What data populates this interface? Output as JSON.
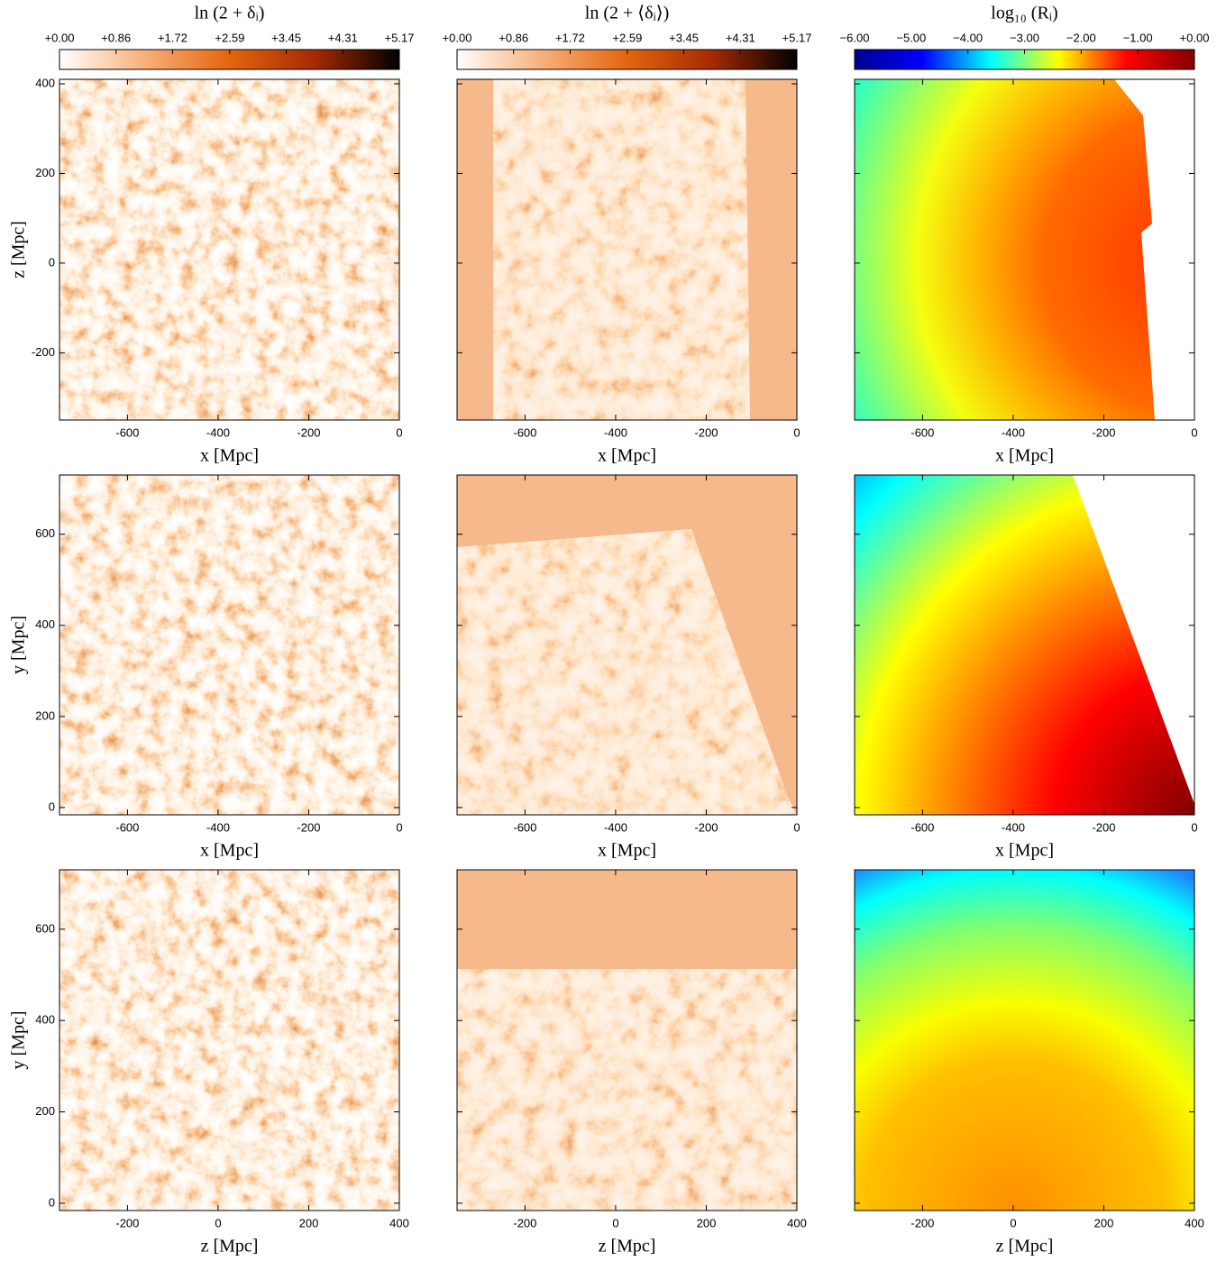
{
  "chart_data": [
    {
      "type": "heatmap",
      "xlabel": "x [Mpc]",
      "ylabel": "z [Mpc]",
      "xlim": [
        -750,
        0
      ],
      "ylim": [
        -350,
        410
      ],
      "xticks": [
        -600,
        -400,
        -200,
        0
      ],
      "yticks": [
        -200,
        0,
        200,
        400
      ]
    },
    {
      "type": "heatmap",
      "xlabel": "x [Mpc]",
      "xlim": [
        -750,
        0
      ],
      "ylim": [
        -350,
        410
      ],
      "xticks": [
        -600,
        -400,
        -200,
        0
      ],
      "yticks": [
        -200,
        0,
        200,
        400
      ]
    },
    {
      "type": "heatmap",
      "xlabel": "x [Mpc]",
      "xlim": [
        -750,
        0
      ],
      "ylim": [
        -350,
        410
      ],
      "xticks": [
        -600,
        -400,
        -200,
        0
      ],
      "yticks": [
        -200,
        0,
        200,
        400
      ]
    },
    {
      "type": "heatmap",
      "xlabel": "x [Mpc]",
      "ylabel": "y [Mpc]",
      "xlim": [
        -750,
        0
      ],
      "ylim": [
        -16,
        730
      ],
      "xticks": [
        -600,
        -400,
        -200,
        0
      ],
      "yticks": [
        0,
        200,
        400,
        600
      ]
    },
    {
      "type": "heatmap",
      "xlabel": "x [Mpc]",
      "xlim": [
        -750,
        0
      ],
      "ylim": [
        -16,
        730
      ],
      "xticks": [
        -600,
        -400,
        -200,
        0
      ],
      "yticks": [
        0,
        200,
        400,
        600
      ]
    },
    {
      "type": "heatmap",
      "xlabel": "x [Mpc]",
      "xlim": [
        -750,
        0
      ],
      "ylim": [
        -16,
        730
      ],
      "xticks": [
        -600,
        -400,
        -200,
        0
      ],
      "yticks": [
        0,
        200,
        400,
        600
      ]
    },
    {
      "type": "heatmap",
      "xlabel": "z [Mpc]",
      "ylabel": "y [Mpc]",
      "xlim": [
        -350,
        400
      ],
      "ylim": [
        -16,
        730
      ],
      "xticks": [
        -200,
        0,
        200,
        400
      ],
      "yticks": [
        0,
        200,
        400,
        600
      ]
    },
    {
      "type": "heatmap",
      "xlabel": "z [Mpc]",
      "xlim": [
        -350,
        400
      ],
      "ylim": [
        -16,
        730
      ],
      "xticks": [
        -200,
        0,
        200,
        400
      ],
      "yticks": [
        0,
        200,
        400,
        600
      ]
    },
    {
      "type": "heatmap",
      "xlabel": "z [Mpc]",
      "xlim": [
        -350,
        400
      ],
      "ylim": [
        -16,
        730
      ],
      "xticks": [
        -200,
        0,
        200,
        400
      ],
      "yticks": [
        0,
        200,
        400,
        600
      ]
    }
  ],
  "colorbars": [
    {
      "title": "ln (2 + δᵢ)",
      "lim": [
        0,
        5.17
      ],
      "colors": [
        "#ffffff",
        "#f7b07a",
        "#e4650f",
        "#a62a02",
        "#000000"
      ],
      "ticks": [
        {
          "value": 0,
          "label": "+0.00"
        },
        {
          "value": 0.86,
          "label": "+0.86"
        },
        {
          "value": 1.72,
          "label": "+1.72"
        },
        {
          "value": 2.59,
          "label": "+2.59"
        },
        {
          "value": 3.45,
          "label": "+3.45"
        },
        {
          "value": 4.31,
          "label": "+4.31"
        },
        {
          "value": 5.17,
          "label": "+5.17"
        }
      ]
    },
    {
      "title": "ln (2 + ⟨δᵢ⟩)",
      "lim": [
        0,
        5.17
      ],
      "colors": [
        "#ffffff",
        "#f7b07a",
        "#e4650f",
        "#a62a02",
        "#000000"
      ],
      "ticks": [
        {
          "value": 0,
          "label": "+0.00"
        },
        {
          "value": 0.86,
          "label": "+0.86"
        },
        {
          "value": 1.72,
          "label": "+1.72"
        },
        {
          "value": 2.59,
          "label": "+2.59"
        },
        {
          "value": 3.45,
          "label": "+3.45"
        },
        {
          "value": 4.31,
          "label": "+4.31"
        },
        {
          "value": 5.17,
          "label": "+5.17"
        }
      ]
    },
    {
      "title": "log₁₀ (Rᵢ)",
      "lim": [
        -6,
        0
      ],
      "colors": [
        "#00008f",
        "#0000ff",
        "#00ffff",
        "#ffff00",
        "#ff0000",
        "#800000"
      ],
      "ticks": [
        {
          "value": -6,
          "label": "−6.00"
        },
        {
          "value": -5,
          "label": "−5.00"
        },
        {
          "value": -4,
          "label": "−4.00"
        },
        {
          "value": -3,
          "label": "−3.00"
        },
        {
          "value": -2,
          "label": "−2.00"
        },
        {
          "value": -1,
          "label": "−1.00"
        },
        {
          "value": 0,
          "label": "+0.00"
        }
      ]
    }
  ]
}
